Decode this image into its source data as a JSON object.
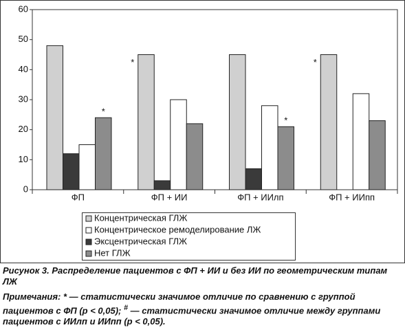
{
  "chart_data": {
    "type": "bar",
    "categories": [
      "ФП",
      "ФП + ИИ",
      "ФП + ИИлп",
      "ФП + ИИпп"
    ],
    "series": [
      {
        "name": "Концентрическая ГЛЖ",
        "color": "#d0d0d0",
        "values": [
          48,
          45,
          45,
          45
        ]
      },
      {
        "name": "Концентрическое ремоделирование ЛЖ",
        "color": "#ffffff",
        "values": [
          15,
          30,
          28,
          32
        ]
      },
      {
        "name": "Эксцентрическая ГЛЖ",
        "color": "#3a3a3a",
        "values": [
          12,
          3,
          7,
          0
        ]
      },
      {
        "name": "Нет ГЛЖ",
        "color": "#8c8c8c",
        "values": [
          24,
          22,
          21,
          23
        ]
      }
    ],
    "ylim": [
      0,
      60
    ],
    "yticks": [
      0,
      10,
      20,
      30,
      40,
      50,
      60
    ],
    "annotations": [
      "*",
      "*",
      "*",
      "*"
    ]
  },
  "caption": {
    "title": "Рисунок 3. Распределение пациентов с ФП + ИИ и без ИИ по геометрическим типам ЛЖ",
    "note_start": "Примечания: * — статистически значимое отличие по сравнению с группой пациентов с ФП (p < 0,05); ",
    "note_mark": "#",
    "note_end": " — статистически значимое отличие между группами пациентов с ИИлп и ИИпп (p < 0,05)."
  }
}
